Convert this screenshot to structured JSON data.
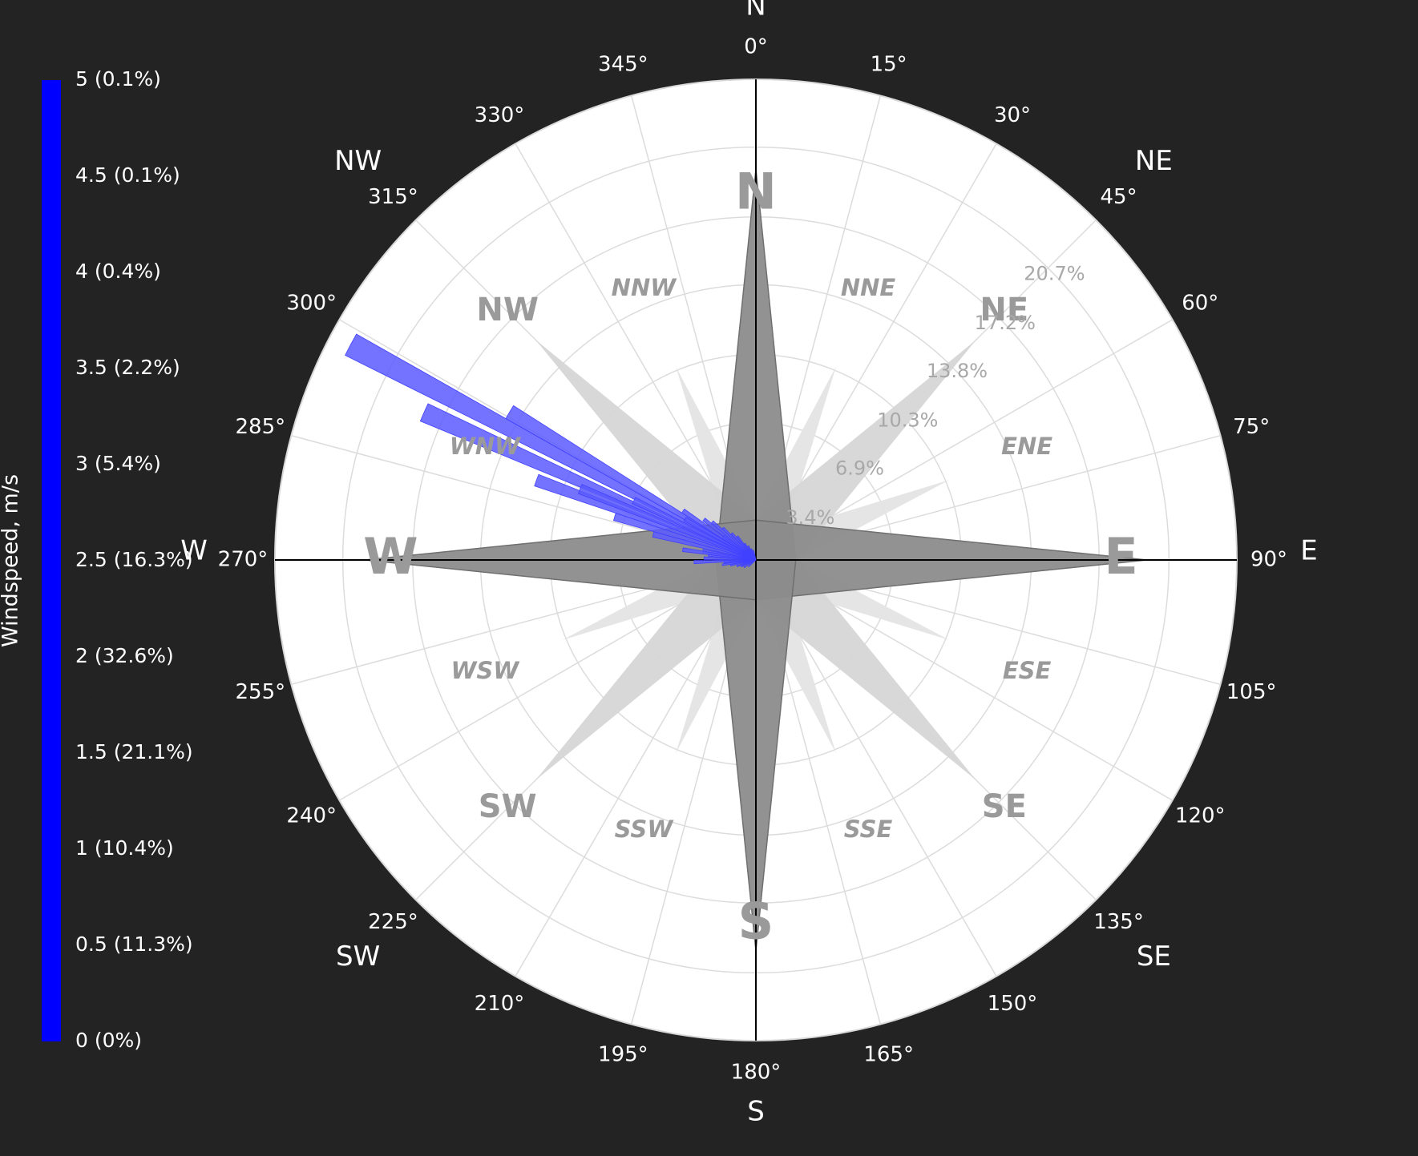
{
  "chart_data": {
    "type": "barpolar",
    "colorbar": {
      "title": "Windspeed, m/s",
      "color": "#0000ff",
      "labels": [
        "0 (0%)",
        "0.5 (11.3%)",
        "1 (10.4%)",
        "1.5 (21.1%)",
        "2 (32.6%)",
        "2.5 (16.3%)",
        "3 (5.4%)",
        "3.5 (2.2%)",
        "4 (0.4%)",
        "4.5 (0.1%)",
        "5 (0.1%)"
      ]
    },
    "angular_axis": {
      "direction": "clockwise",
      "rotation": "north",
      "tick_labels": [
        "0°",
        "15°",
        "30°",
        "45°",
        "60°",
        "75°",
        "90°",
        "105°",
        "120°",
        "135°",
        "150°",
        "165°",
        "180°",
        "195°",
        "210°",
        "225°",
        "240°",
        "255°",
        "270°",
        "285°",
        "300°",
        "315°",
        "330°",
        "345°"
      ],
      "compass_labels": [
        {
          "label": "N",
          "angle": 0
        },
        {
          "label": "NE",
          "angle": 45
        },
        {
          "label": "E",
          "angle": 90
        },
        {
          "label": "SE",
          "angle": 135
        },
        {
          "label": "S",
          "angle": 180
        },
        {
          "label": "SW",
          "angle": 225
        },
        {
          "label": "W",
          "angle": 270
        },
        {
          "label": "NW",
          "angle": 315
        }
      ]
    },
    "radial_axis": {
      "unit": "%",
      "range": [
        0,
        24.1
      ],
      "tick_values": [
        3.4,
        6.9,
        10.3,
        13.8,
        17.2,
        20.7
      ],
      "tick_labels": [
        "3.4%",
        "6.9%",
        "10.3%",
        "13.8%",
        "17.2%",
        "20.7%"
      ],
      "label_angle": 45
    },
    "compass_rose": {
      "major_labels": [
        {
          "label": "N",
          "angle": 0
        },
        {
          "label": "E",
          "angle": 90
        },
        {
          "label": "S",
          "angle": 180
        },
        {
          "label": "W",
          "angle": 270
        }
      ],
      "inter_labels": [
        {
          "label": "NE",
          "angle": 45
        },
        {
          "label": "SE",
          "angle": 135
        },
        {
          "label": "SW",
          "angle": 225
        },
        {
          "label": "NW",
          "angle": 315
        }
      ],
      "minor_labels": [
        {
          "label": "NNE",
          "angle": 22.5
        },
        {
          "label": "ENE",
          "angle": 67.5
        },
        {
          "label": "ESE",
          "angle": 112.5
        },
        {
          "label": "SSE",
          "angle": 157.5
        },
        {
          "label": "SSW",
          "angle": 202.5
        },
        {
          "label": "WSW",
          "angle": 247.5
        },
        {
          "label": "WNW",
          "angle": 292.5
        },
        {
          "label": "NNW",
          "angle": 337.5
        }
      ],
      "colors": {
        "cardinal": "#8c8c8c",
        "intercardinal": "#d6d6d6",
        "minor": "#e4e4e4"
      }
    },
    "bars": {
      "color": "#5a5aff",
      "width_deg": 3,
      "points": [
        {
          "dir": 298,
          "r": 23.0
        },
        {
          "dir": 301,
          "r": 14.4
        },
        {
          "dir": 294,
          "r": 18.2
        },
        {
          "dir": 296,
          "r": 6.8
        },
        {
          "dir": 290,
          "r": 11.7
        },
        {
          "dir": 304,
          "r": 4.4
        },
        {
          "dir": 300,
          "r": 4.1
        },
        {
          "dir": 287,
          "r": 7.4
        },
        {
          "dir": 284,
          "r": 5.3
        },
        {
          "dir": 308,
          "r": 3.3
        },
        {
          "dir": 311,
          "r": 2.9
        },
        {
          "dir": 280,
          "r": 2.7
        },
        {
          "dir": 276,
          "r": 2.4
        },
        {
          "dir": 314,
          "r": 2.3
        },
        {
          "dir": 318,
          "r": 1.8
        },
        {
          "dir": 322,
          "r": 1.5
        },
        {
          "dir": 272,
          "r": 2.6
        },
        {
          "dir": 266,
          "r": 1.6
        },
        {
          "dir": 262,
          "r": 1.7
        },
        {
          "dir": 258,
          "r": 1.3
        },
        {
          "dir": 252,
          "r": 1.0
        },
        {
          "dir": 246,
          "r": 0.8
        },
        {
          "dir": 238,
          "r": 0.7
        },
        {
          "dir": 228,
          "r": 0.5
        },
        {
          "dir": 326,
          "r": 1.0
        },
        {
          "dir": 332,
          "r": 0.8
        },
        {
          "dir": 338,
          "r": 0.6
        },
        {
          "dir": 346,
          "r": 0.5
        },
        {
          "dir": 268,
          "r": 3.1
        },
        {
          "dir": 278,
          "r": 3.7
        },
        {
          "dir": 292,
          "r": 9.5
        },
        {
          "dir": 306,
          "r": 2.0
        }
      ]
    },
    "grid": true
  }
}
